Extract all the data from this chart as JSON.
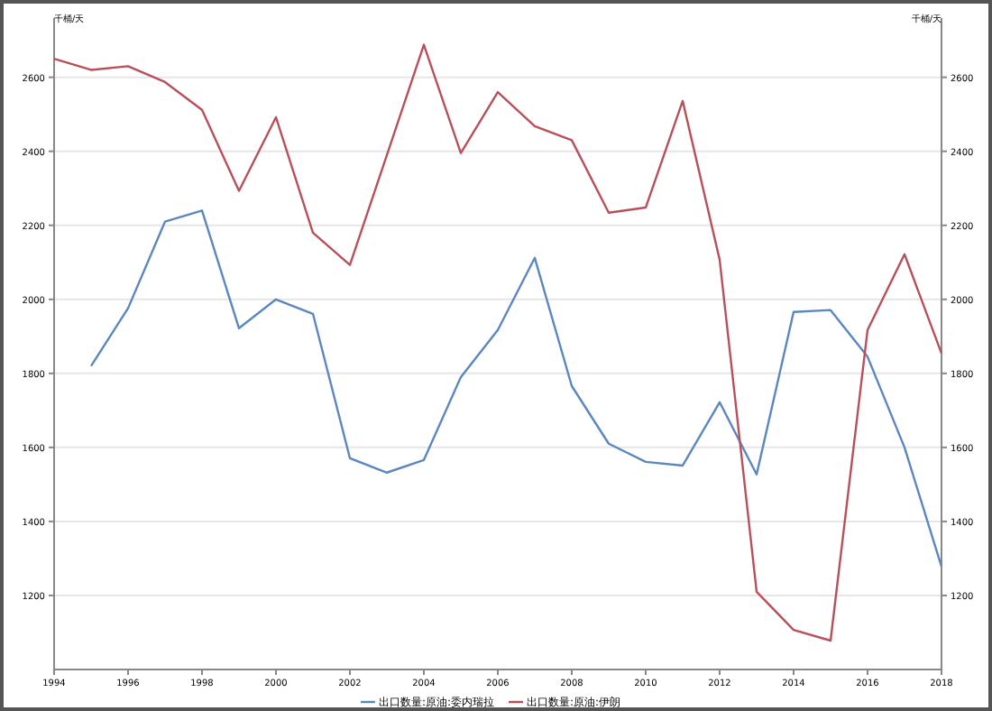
{
  "chart_data": {
    "type": "line",
    "ylabel": "千桶/天",
    "y2label": "千桶/天",
    "x": [
      1994,
      1995,
      1996,
      1997,
      1998,
      1999,
      2000,
      2001,
      2002,
      2003,
      2004,
      2005,
      2006,
      2007,
      2008,
      2009,
      2010,
      2011,
      2012,
      2013,
      2014,
      2015,
      2016,
      2017,
      2018
    ],
    "series": [
      {
        "name": "出口数量:原油:委内瑞拉",
        "color": "#5b87c0",
        "values": [
          null,
          1820,
          1976,
          2210,
          2240,
          1922,
          2000,
          1961,
          1571,
          1532,
          1566,
          1790,
          1917,
          2112,
          1766,
          1610,
          1561,
          1551,
          1722,
          1527,
          1966,
          1971,
          1845,
          1600,
          1278
        ]
      },
      {
        "name": "出口数量:原油:伊朗",
        "color": "#b8505a",
        "values": [
          2650,
          2620,
          2630,
          2587,
          2512,
          2293,
          2492,
          2180,
          2093,
          2390,
          2688,
          2395,
          2560,
          2468,
          2430,
          2234,
          2248,
          2536,
          2107,
          1210,
          1107,
          1078,
          1917,
          2122,
          1854
        ]
      }
    ],
    "xlim": [
      1994,
      2018
    ],
    "xticks": [
      1994,
      1996,
      1998,
      2000,
      2002,
      2004,
      2006,
      2008,
      2010,
      2012,
      2014,
      2016,
      2018
    ],
    "ylim": [
      1000,
      2760
    ],
    "yticks": [
      1200,
      1400,
      1600,
      1800,
      2000,
      2200,
      2400,
      2600
    ],
    "y2lim": [
      1000,
      2760
    ],
    "y2ticks": [
      1200,
      1400,
      1600,
      1800,
      2000,
      2200,
      2400,
      2600
    ],
    "grid": "y",
    "legend": "bottom",
    "marker": "none",
    "line_style": "solid"
  }
}
